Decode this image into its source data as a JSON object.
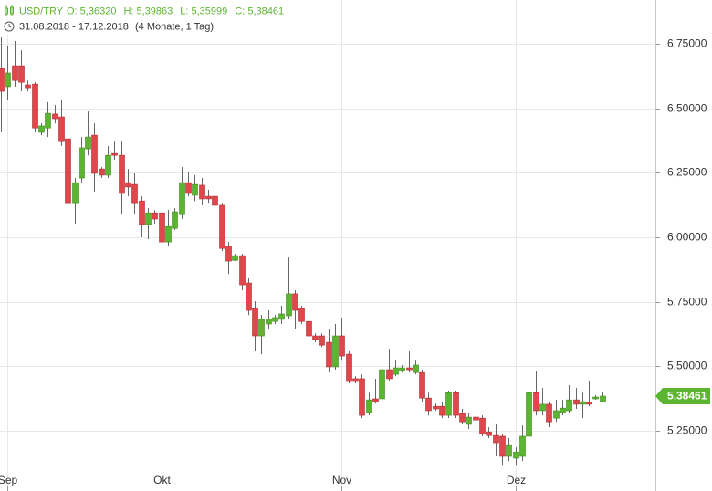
{
  "chart_data": {
    "type": "candlestick",
    "title": "USD/TRY",
    "ohlc_labels": [
      "O: 5,36320",
      "H: 5,39863",
      "L: 5,35999",
      "C: 5,38461"
    ],
    "subtitle": "31.08.2018 - 17.12.2018",
    "period": "(4 Monate, 1 Tag)",
    "up_color": "#5cb531",
    "down_color": "#e0474c",
    "grid": true,
    "ylim": [
      5.098,
      6.92
    ],
    "yticks": [
      {
        "value": 6.75,
        "label": "6,75000"
      },
      {
        "value": 6.5,
        "label": "6,50000"
      },
      {
        "value": 6.25,
        "label": "6,25000"
      },
      {
        "value": 6.0,
        "label": "6,00000"
      },
      {
        "value": 5.75,
        "label": "5,75000"
      },
      {
        "value": 5.5,
        "label": "5,50000"
      },
      {
        "value": 5.25,
        "label": "5,25000"
      }
    ],
    "last_price": {
      "value": 5.38461,
      "label": "5,38461"
    },
    "categories": [
      null,
      "Sep",
      null,
      null,
      null,
      null,
      null,
      null,
      null,
      null,
      null,
      null,
      null,
      null,
      null,
      null,
      null,
      null,
      null,
      null,
      null,
      null,
      null,
      null,
      "Okt",
      null,
      null,
      null,
      null,
      null,
      null,
      null,
      null,
      null,
      null,
      null,
      null,
      null,
      null,
      null,
      null,
      null,
      null,
      null,
      null,
      null,
      null,
      null,
      null,
      null,
      null,
      "Nov",
      null,
      null,
      null,
      null,
      null,
      null,
      null,
      null,
      null,
      null,
      null,
      null,
      null,
      null,
      null,
      null,
      null,
      null,
      null,
      null,
      null,
      null,
      null,
      null,
      null,
      "Dez",
      null,
      null,
      null,
      null,
      null,
      null,
      null,
      null,
      null,
      null,
      null,
      null,
      null
    ],
    "open": [
      6.654,
      6.584,
      6.665,
      6.665,
      6.591,
      6.594,
      6.407,
      6.424,
      6.478,
      6.467,
      6.382,
      6.134,
      6.23,
      6.343,
      6.396,
      6.265,
      6.241,
      6.325,
      6.318,
      6.212,
      6.205,
      6.141,
      6.05,
      6.095,
      6.095,
      5.982,
      6.035,
      6.088,
      6.212,
      6.163,
      6.202,
      6.159,
      6.159,
      6.124,
      5.965,
      5.911,
      5.929,
      5.823,
      5.724,
      5.618,
      5.664,
      5.674,
      5.682,
      5.696,
      5.781,
      5.724,
      5.674,
      5.618,
      5.618,
      5.593,
      5.498,
      5.618,
      5.547,
      5.452,
      5.452,
      5.321,
      5.374,
      5.374,
      5.487,
      5.469,
      5.483,
      5.494,
      5.476,
      5.476,
      5.377,
      5.345,
      5.345,
      5.31,
      5.398,
      5.317,
      5.275,
      5.303,
      5.299,
      5.246,
      5.232,
      5.229,
      5.151,
      5.144,
      5.151,
      5.229,
      5.398,
      5.328,
      5.353,
      5.299,
      5.321,
      5.328,
      5.37,
      5.353,
      5.36,
      5.374,
      5.3632
    ],
    "high": [
      6.778,
      6.743,
      6.761,
      6.725,
      6.608,
      6.601,
      6.442,
      6.524,
      6.513,
      6.531,
      6.389,
      6.23,
      6.389,
      6.488,
      6.442,
      6.272,
      6.354,
      6.371,
      6.371,
      6.265,
      6.248,
      6.159,
      6.113,
      6.106,
      6.124,
      6.106,
      6.113,
      6.272,
      6.255,
      6.241,
      6.23,
      6.184,
      6.184,
      6.134,
      5.982,
      5.936,
      5.936,
      5.841,
      5.752,
      5.699,
      5.717,
      5.699,
      5.735,
      5.922,
      5.795,
      5.735,
      5.699,
      5.628,
      5.628,
      5.646,
      5.664,
      5.689,
      5.558,
      5.462,
      5.469,
      5.398,
      5.452,
      5.512,
      5.568,
      5.522,
      5.505,
      5.558,
      5.522,
      5.487,
      5.398,
      5.356,
      5.363,
      5.406,
      5.406,
      5.335,
      5.321,
      5.31,
      5.31,
      5.264,
      5.275,
      5.239,
      5.222,
      5.186,
      5.271,
      5.48,
      5.48,
      5.416,
      5.363,
      5.37,
      5.37,
      5.427,
      5.416,
      5.398,
      5.441,
      5.388,
      5.39863
    ],
    "low": [
      6.407,
      6.531,
      6.584,
      6.566,
      6.566,
      6.407,
      6.396,
      6.389,
      6.442,
      6.354,
      6.028,
      6.053,
      6.212,
      6.318,
      6.177,
      6.23,
      6.23,
      6.301,
      6.088,
      6.159,
      6.088,
      6.0,
      5.993,
      6.053,
      5.94,
      5.965,
      6.028,
      6.071,
      6.159,
      6.141,
      6.124,
      6.134,
      6.106,
      5.947,
      5.858,
      5.908,
      5.795,
      5.699,
      5.558,
      5.547,
      5.646,
      5.664,
      5.664,
      5.682,
      5.646,
      5.664,
      5.604,
      5.593,
      5.575,
      5.476,
      5.487,
      5.522,
      5.434,
      5.434,
      5.299,
      5.31,
      5.356,
      5.363,
      5.441,
      5.462,
      5.476,
      5.476,
      5.469,
      5.363,
      5.31,
      5.328,
      5.299,
      5.299,
      5.299,
      5.275,
      5.257,
      5.285,
      5.229,
      5.222,
      5.151,
      5.115,
      5.133,
      5.115,
      5.133,
      5.222,
      5.31,
      5.31,
      5.264,
      5.285,
      5.31,
      5.321,
      5.335,
      5.299,
      5.345,
      5.37,
      5.35999
    ],
    "close": [
      6.566,
      6.637,
      6.608,
      6.601,
      6.58,
      6.424,
      6.432,
      6.481,
      6.46,
      6.371,
      6.134,
      6.212,
      6.347,
      6.389,
      6.248,
      6.241,
      6.318,
      6.318,
      6.17,
      6.195,
      6.134,
      6.05,
      6.095,
      6.071,
      5.982,
      6.042,
      6.099,
      6.212,
      6.17,
      6.205,
      6.149,
      6.149,
      6.124,
      5.957,
      5.908,
      5.929,
      5.816,
      5.717,
      5.618,
      5.682,
      5.682,
      5.689,
      5.703,
      5.781,
      5.717,
      5.674,
      5.618,
      5.604,
      5.582,
      5.498,
      5.618,
      5.54,
      5.441,
      5.441,
      5.31,
      5.37,
      5.363,
      5.487,
      5.452,
      5.494,
      5.494,
      5.487,
      5.505,
      5.377,
      5.328,
      5.335,
      5.31,
      5.398,
      5.31,
      5.285,
      5.303,
      5.292,
      5.239,
      5.232,
      5.204,
      5.151,
      5.193,
      5.168,
      5.229,
      5.398,
      5.328,
      5.353,
      5.285,
      5.328,
      5.338,
      5.37,
      5.353,
      5.363,
      5.353,
      5.381,
      5.38461
    ]
  }
}
